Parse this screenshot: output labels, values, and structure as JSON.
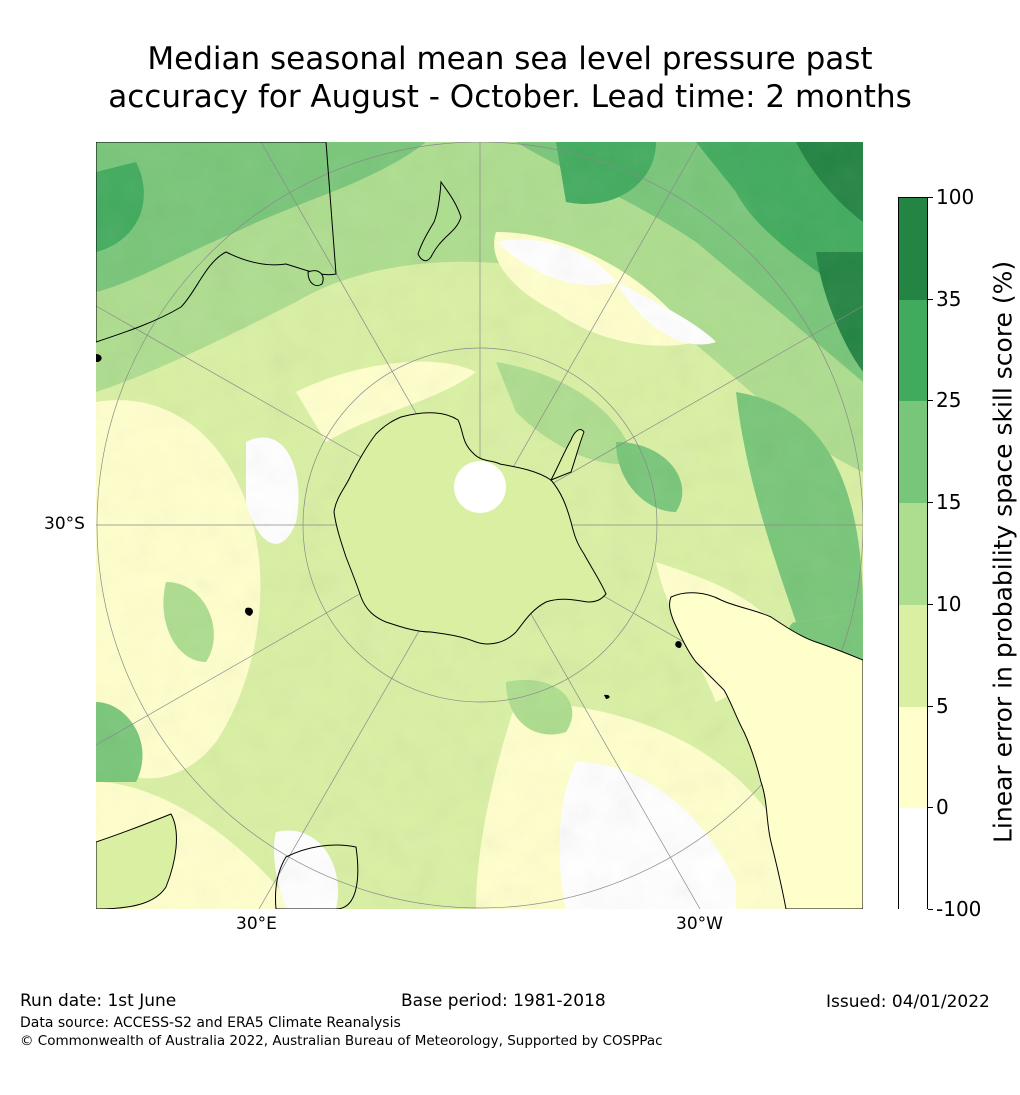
{
  "title_line1": "Median seasonal mean sea level pressure past",
  "title_line2": "accuracy for August - October. Lead time: 2 months",
  "map": {
    "projection": "south-polar-stereographic",
    "lat_labels": [
      "30°S"
    ],
    "lon_labels": [
      "30°E",
      "30°W"
    ],
    "land_outline_color": "#000000",
    "grid_color": "#999999"
  },
  "colorbar": {
    "title": "Linear error in probability space skill score (%)",
    "ticks": [
      "100",
      "35",
      "25",
      "15",
      "10",
      "5",
      "0",
      "-100"
    ],
    "bands": [
      {
        "range": "35 to 100",
        "color": "#238443"
      },
      {
        "range": "25 to 35",
        "color": "#41ab5d"
      },
      {
        "range": "15 to 25",
        "color": "#78c679"
      },
      {
        "range": "10 to 15",
        "color": "#addd8e"
      },
      {
        "range": "5 to 10",
        "color": "#d9f0a3"
      },
      {
        "range": "0 to 5",
        "color": "#ffffcc"
      },
      {
        "range": "-100 to 0",
        "color": "#ffffff"
      }
    ]
  },
  "footer": {
    "run_date": "Run date: 1st June",
    "base_period": "Base period: 1981-2018",
    "issued": "Issued: 04/01/2022",
    "data_source": "Data source: ACCESS-S2 and ERA5 Climate Reanalysis",
    "copyright": "© Commonwealth of Australia 2022, Australian Bureau of Meteorology, Supported by COSPPac"
  }
}
